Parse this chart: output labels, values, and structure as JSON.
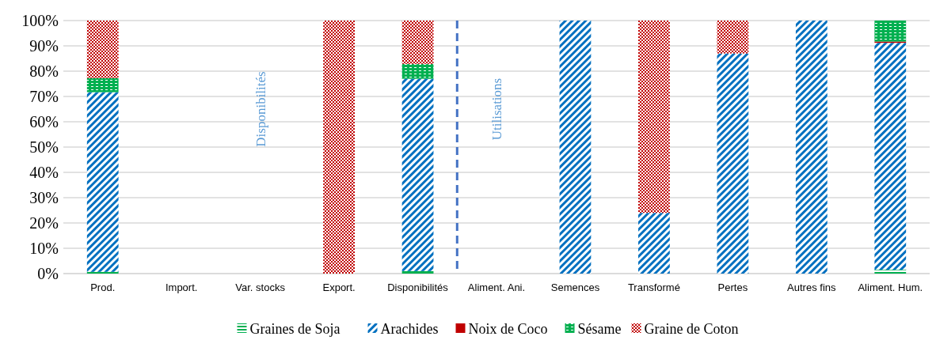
{
  "chart_data": {
    "type": "bar",
    "stacked": true,
    "categories": [
      "Prod.",
      "Import.",
      "Var. stocks",
      "Export.",
      "Disponibilités",
      "Aliment. Ani.",
      "Semences",
      "Transformé",
      "Pertes",
      "Autres fins",
      "Aliment. Hum."
    ],
    "series": [
      {
        "name": "Graines de Soja",
        "color": "#00b050",
        "values": [
          0.7,
          0,
          0,
          0,
          1,
          0,
          0,
          0,
          0,
          0,
          1.5
        ]
      },
      {
        "name": "Arachides",
        "color": "#0070c0",
        "values": [
          71,
          0,
          0,
          0,
          76,
          0,
          100,
          24,
          87,
          100,
          89.7
        ]
      },
      {
        "name": "Noix de Coco",
        "color": "#c00000",
        "values": [
          0,
          0,
          0,
          0,
          0,
          0,
          0,
          0,
          0,
          0,
          0.5
        ]
      },
      {
        "name": "Sésame",
        "color": "#00b050",
        "values": [
          5.5,
          0,
          0,
          0,
          5.8,
          0,
          0,
          0,
          0,
          0,
          8.3
        ]
      },
      {
        "name": "Graine de Coton",
        "color": "#c00000",
        "values": [
          22.8,
          0,
          0,
          100,
          17.2,
          0,
          0,
          76,
          13,
          0,
          0
        ]
      }
    ],
    "ylim": [
      0,
      100
    ],
    "yticks": [
      {
        "value": 0,
        "label": "0%"
      },
      {
        "value": 10,
        "label": "10%"
      },
      {
        "value": 20,
        "label": "20%"
      },
      {
        "value": 30,
        "label": "30%"
      },
      {
        "value": 40,
        "label": "40%"
      },
      {
        "value": 50,
        "label": "50%"
      },
      {
        "value": 60,
        "label": "60%"
      },
      {
        "value": 70,
        "label": "70%"
      },
      {
        "value": 80,
        "label": "80%"
      },
      {
        "value": 90,
        "label": "90%"
      },
      {
        "value": 100,
        "label": "100%"
      }
    ],
    "grid": "y",
    "legend": "bottom",
    "annotations": [
      "Disponibilités",
      "Utilisations"
    ]
  }
}
